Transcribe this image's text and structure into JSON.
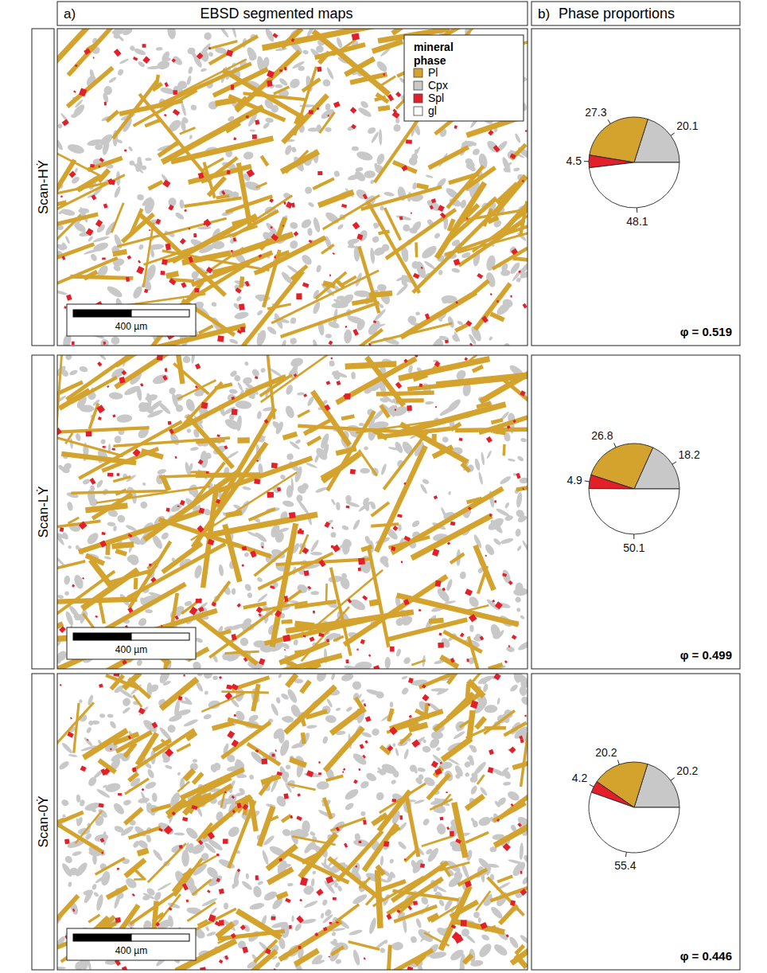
{
  "header": {
    "panel_a": "a)",
    "title_a": "EBSD segmented maps",
    "panel_b": "b)",
    "title_b": "Phase proportions"
  },
  "maps": [
    {
      "label": "Scan-HẎ",
      "scale_bar": "400 µm"
    },
    {
      "label": "Scan-LẎ",
      "scale_bar": "400 µm"
    },
    {
      "label": "Scan-0Ẏ",
      "scale_bar": "400 µm"
    }
  ],
  "map_legend": {
    "title": "mineral phase",
    "items": [
      "Pl",
      "Cpx",
      "Spl",
      "gl"
    ]
  },
  "chart_data": [
    {
      "type": "pie",
      "categories": [
        "Cpx",
        "Pl",
        "Spl",
        "gl"
      ],
      "values": [
        20.1,
        27.3,
        4.5,
        48.1
      ],
      "colors": [
        "#c8c8c8",
        "#d4a32e",
        "#e3202a",
        "#ffffff"
      ],
      "data_labels": true,
      "annotation": "φ = 0.519"
    },
    {
      "type": "pie",
      "categories": [
        "Cpx",
        "Pl",
        "Spl",
        "gl"
      ],
      "values": [
        18.2,
        26.8,
        4.9,
        50.1
      ],
      "colors": [
        "#c8c8c8",
        "#d4a32e",
        "#e3202a",
        "#ffffff"
      ],
      "data_labels": true,
      "annotation": "φ = 0.499"
    },
    {
      "type": "pie",
      "categories": [
        "Cpx",
        "Pl",
        "Spl",
        "gl"
      ],
      "values": [
        20.2,
        20.2,
        4.2,
        55.4
      ],
      "colors": [
        "#c8c8c8",
        "#d4a32e",
        "#e3202a",
        "#ffffff"
      ],
      "data_labels": true,
      "annotation": "φ = 0.446"
    }
  ]
}
